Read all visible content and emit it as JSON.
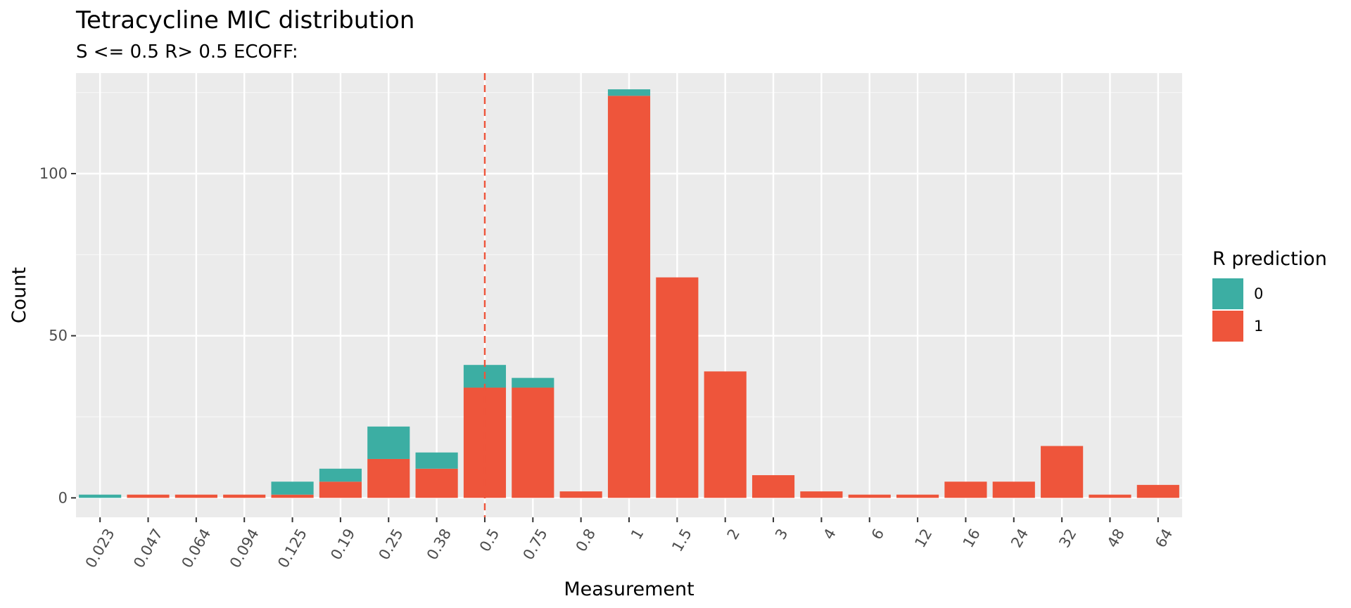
{
  "chart_data": {
    "type": "bar",
    "stacked": true,
    "title": "Tetracycline MIC distribution",
    "subtitle": "S <= 0.5 R> 0.5 ECOFF:",
    "xlabel": "Measurement",
    "ylabel": "Count",
    "ylim": [
      -6,
      131
    ],
    "yticks": [
      0,
      50,
      100
    ],
    "grid": true,
    "legend_placement": "right",
    "legend_title": "R prediction",
    "categories": [
      "0.023",
      "0.047",
      "0.064",
      "0.094",
      "0.125",
      "0.19",
      "0.25",
      "0.38",
      "0.5",
      "0.75",
      "0.8",
      "1",
      "1.5",
      "2",
      "3",
      "4",
      "6",
      "12",
      "16",
      "24",
      "32",
      "48",
      "64"
    ],
    "series": [
      {
        "name": "1",
        "color": "#EE553B",
        "values": [
          0,
          1,
          1,
          1,
          1,
          5,
          12,
          9,
          34,
          34,
          2,
          124,
          68,
          39,
          7,
          2,
          1,
          1,
          5,
          5,
          16,
          1,
          4
        ]
      },
      {
        "name": "0",
        "color": "#3CAEA3",
        "values": [
          1,
          0,
          0,
          0,
          4,
          4,
          10,
          5,
          7,
          3,
          0,
          2,
          0,
          0,
          0,
          0,
          0,
          0,
          0,
          0,
          0,
          0,
          0
        ]
      }
    ],
    "legend_order": [
      "0",
      "1"
    ],
    "reference_line": {
      "x": "0.5",
      "style": "dashed",
      "color": "#EE553B"
    }
  }
}
